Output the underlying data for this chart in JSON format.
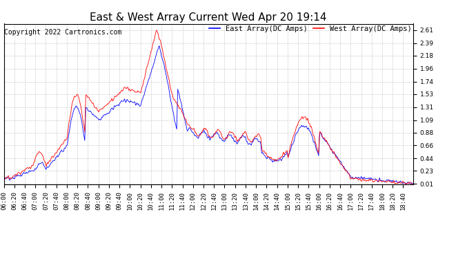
{
  "title": "East & West Array Current Wed Apr 20 19:14",
  "copyright": "Copyright 2022 Cartronics.com",
  "legend_east": "East Array(DC Amps)",
  "legend_west": "West Array(DC Amps)",
  "east_color": "#0000ff",
  "west_color": "#ff0000",
  "bg_color": "#ffffff",
  "plot_bg_color": "#ffffff",
  "grid_color": "#b0b0b0",
  "yticks": [
    0.01,
    0.23,
    0.44,
    0.66,
    0.88,
    1.09,
    1.31,
    1.53,
    1.74,
    1.96,
    2.18,
    2.39,
    2.61
  ],
  "ylim": [
    0.0,
    2.72
  ],
  "title_fontsize": 11,
  "tick_fontsize": 6.5,
  "copyright_fontsize": 7,
  "legend_fontsize": 7.5
}
